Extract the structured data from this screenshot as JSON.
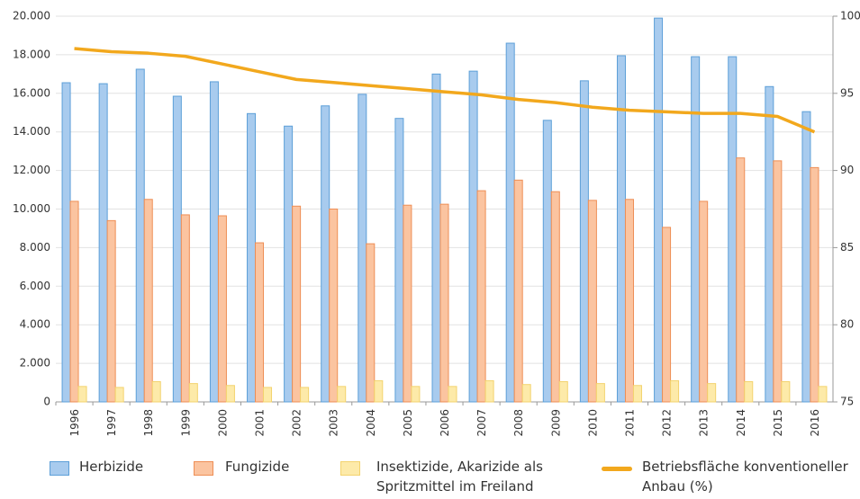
{
  "chart_data": {
    "type": "bar-line",
    "categories": [
      "1996",
      "1997",
      "1998",
      "1999",
      "2000",
      "2001",
      "2002",
      "2003",
      "2004",
      "2005",
      "2006",
      "2007",
      "2008",
      "2009",
      "2010",
      "2011",
      "2012",
      "2013",
      "2014",
      "2015",
      "2016"
    ],
    "series": [
      {
        "name": "Herbizide",
        "type": "bar",
        "color": "#a8cbee",
        "stroke": "#5c9fd8",
        "values": [
          16550,
          16500,
          17250,
          15850,
          16600,
          14950,
          14300,
          15350,
          15950,
          14700,
          17000,
          17150,
          18600,
          14600,
          16650,
          17950,
          19900,
          17900,
          17900,
          16350,
          15050
        ]
      },
      {
        "name": "Fungizide",
        "type": "bar",
        "color": "#fbc4a0",
        "stroke": "#ee8e55",
        "values": [
          10400,
          9400,
          10500,
          9700,
          9650,
          8250,
          10150,
          10000,
          8200,
          10200,
          10250,
          10950,
          11500,
          10900,
          10450,
          10500,
          9050,
          10400,
          12650,
          12500,
          12150
        ]
      },
      {
        "name": "Insektizide, Akarizide als Spritzmittel im Freiland",
        "type": "bar",
        "color": "#fdeaa9",
        "stroke": "#f3d36e",
        "values": [
          800,
          750,
          1050,
          950,
          850,
          750,
          750,
          800,
          1100,
          800,
          800,
          1100,
          900,
          1050,
          950,
          850,
          1100,
          950,
          1050,
          1050,
          800
        ]
      },
      {
        "name": "Betriebsfläche konventioneller Anbau (%)",
        "type": "line",
        "axis": "y2",
        "color": "#f2a81d",
        "values": [
          97.9,
          97.7,
          97.6,
          97.4,
          96.9,
          96.4,
          95.9,
          95.7,
          95.5,
          95.3,
          95.1,
          94.9,
          94.6,
          94.4,
          94.1,
          93.9,
          93.8,
          93.7,
          93.7,
          93.5,
          92.5
        ]
      }
    ],
    "ylim": [
      0,
      20000
    ],
    "yticks": [
      0,
      {
        "value": 2000,
        "label": "2.000"
      },
      {
        "value": 4000,
        "label": "4.000"
      },
      {
        "value": 6000,
        "label": "6.000"
      },
      {
        "value": 8000,
        "label": "8.000"
      },
      {
        "value": 10000,
        "label": "10.000"
      },
      {
        "value": 12000,
        "label": "12.000"
      },
      {
        "value": 14000,
        "label": "14.000"
      },
      {
        "value": 16000,
        "label": "16.000"
      },
      {
        "value": 18000,
        "label": "18.000"
      },
      {
        "value": 20000,
        "label": "20.000"
      }
    ],
    "y2lim": [
      75,
      100
    ],
    "y2ticks": [
      75,
      80,
      85,
      90,
      95,
      100
    ],
    "grid": true
  }
}
